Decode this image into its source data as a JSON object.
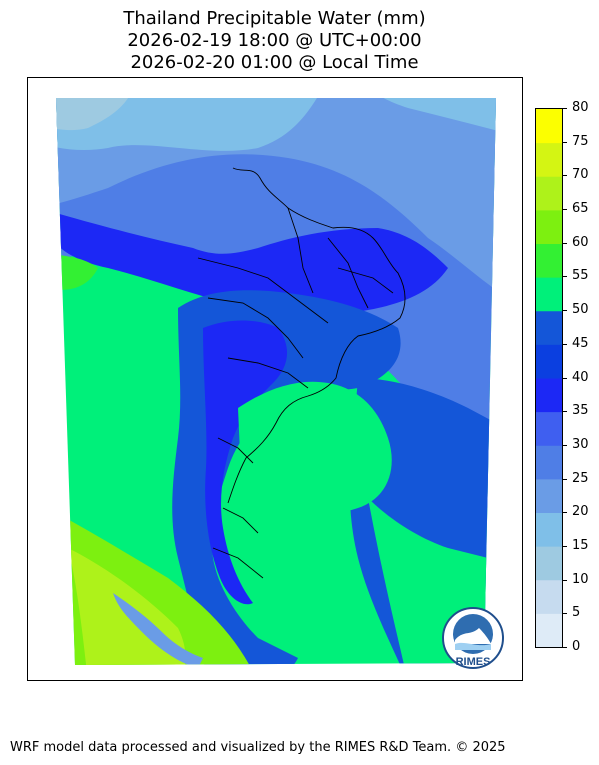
{
  "title": {
    "line1": "Thailand Precipitable Water (mm)",
    "line2": "2026-02-19 18:00 @ UTC+00:00",
    "line3": "2026-02-20 01:00 @ Local Time"
  },
  "colorbar": {
    "ticks": [
      "0",
      "5",
      "10",
      "15",
      "20",
      "25",
      "30",
      "35",
      "40",
      "45",
      "50",
      "55",
      "60",
      "65",
      "70",
      "75",
      "80"
    ],
    "colors": [
      "#deebf7",
      "#c6dbef",
      "#9ecae1",
      "#7fbfe8",
      "#6a9ce6",
      "#4f7ee6",
      "#3f5ff0",
      "#1c28f5",
      "#0b3fe0",
      "#1456d8",
      "#00f07a",
      "#33f033",
      "#7df010",
      "#aef21a",
      "#d4f513",
      "#fcff00",
      "#ffc800"
    ]
  },
  "logo": {
    "text": "RIMES"
  },
  "footer": "WRF model data processed and visualized by the RIMES R&D Team. © 2025"
}
